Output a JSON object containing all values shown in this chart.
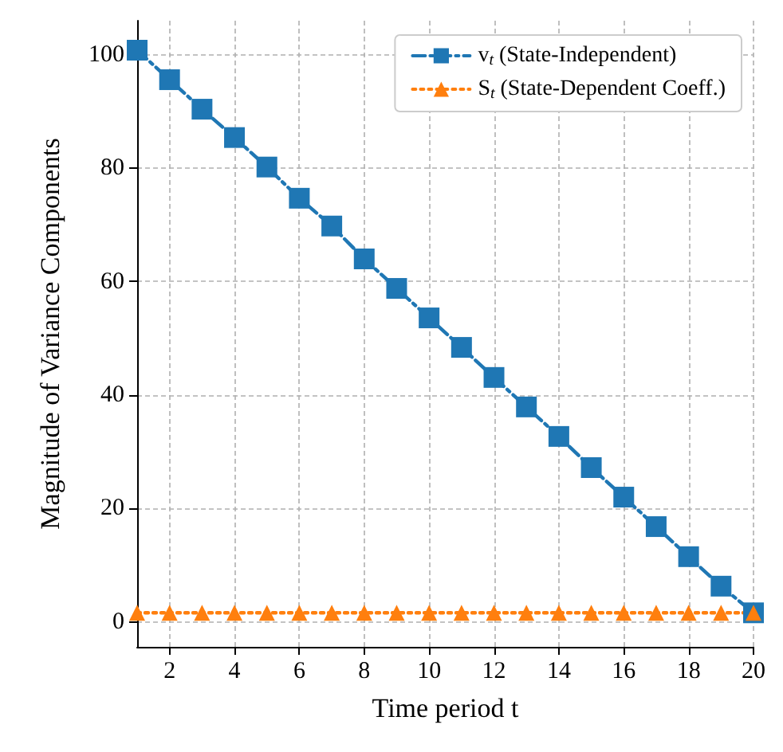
{
  "chart_data": {
    "type": "line",
    "xlabel": "Time period t",
    "ylabel": "Magnitude of Variance Components",
    "x": [
      1,
      2,
      3,
      4,
      5,
      6,
      7,
      8,
      9,
      10,
      11,
      12,
      13,
      14,
      15,
      16,
      17,
      18,
      19,
      20
    ],
    "series": [
      {
        "name": "v$_{t}$ (State-Independent)",
        "color": "#1f77b4",
        "marker": "square",
        "line_style": "dashed",
        "values": [
          100.8,
          95.6,
          90.4,
          85.4,
          80.2,
          74.7,
          69.8,
          64.0,
          58.8,
          53.6,
          48.4,
          43.1,
          37.9,
          32.7,
          27.2,
          22.0,
          16.8,
          11.5,
          6.3,
          1.6
        ]
      },
      {
        "name": "S$_{t}$ (State-Dependent Coeff.)",
        "color": "#ff7f0e",
        "marker": "triangle",
        "line_style": "dotted",
        "values": [
          1.6,
          1.6,
          1.6,
          1.6,
          1.6,
          1.6,
          1.6,
          1.6,
          1.6,
          1.6,
          1.6,
          1.6,
          1.6,
          1.6,
          1.6,
          1.6,
          1.6,
          1.6,
          1.6,
          1.6
        ]
      }
    ],
    "xlim": [
      1,
      20
    ],
    "xticks": [
      2,
      4,
      6,
      8,
      10,
      12,
      14,
      16,
      18,
      20
    ],
    "ylim": [
      -4.4,
      106
    ],
    "yticks": [
      0,
      20,
      40,
      60,
      80,
      100
    ],
    "grid": true,
    "legend": "top right"
  }
}
